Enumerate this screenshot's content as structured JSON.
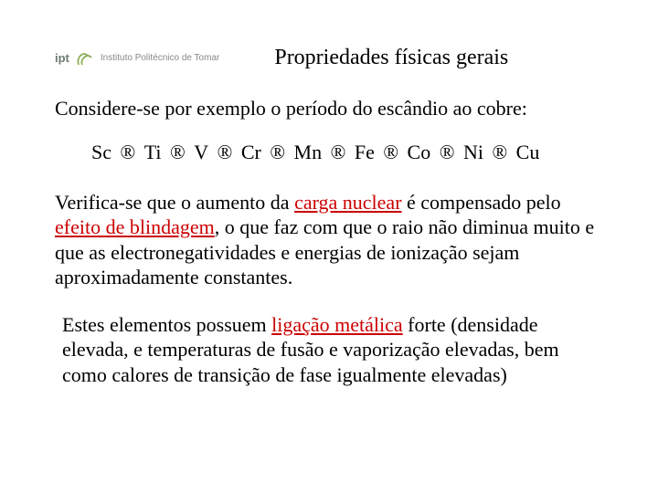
{
  "logo": {
    "ipt": "ipt",
    "full": "Instituto Politécnico de Tomar"
  },
  "title": "Propriedades físicas gerais",
  "intro": "Considere-se por exemplo o período do escândio ao cobre:",
  "elements": [
    "Sc",
    "Ti",
    "V",
    "Cr",
    "Mn",
    "Fe",
    "Co",
    "Ni",
    "Cu"
  ],
  "arrow": "®",
  "p2_a": "Verifica-se que o aumento da ",
  "p2_red1": "carga nuclear",
  "p2_b": " é compensado pelo ",
  "p2_red2": "efeito de blindagem",
  "p2_c": ", o que faz com que o raio não diminua muito e que as electronegatividades e energias de ionização sejam aproximadamente constantes.",
  "p3_a": "Estes elementos possuem ",
  "p3_red": "ligação metálica",
  "p3_b": " forte (densidade elevada, e temperaturas de fusão e vaporização elevadas, bem como calores de transição de fase igualmente elevadas)",
  "colors": {
    "text": "#000000",
    "highlight": "#cc0000",
    "logo_green": "#8fae5a"
  }
}
